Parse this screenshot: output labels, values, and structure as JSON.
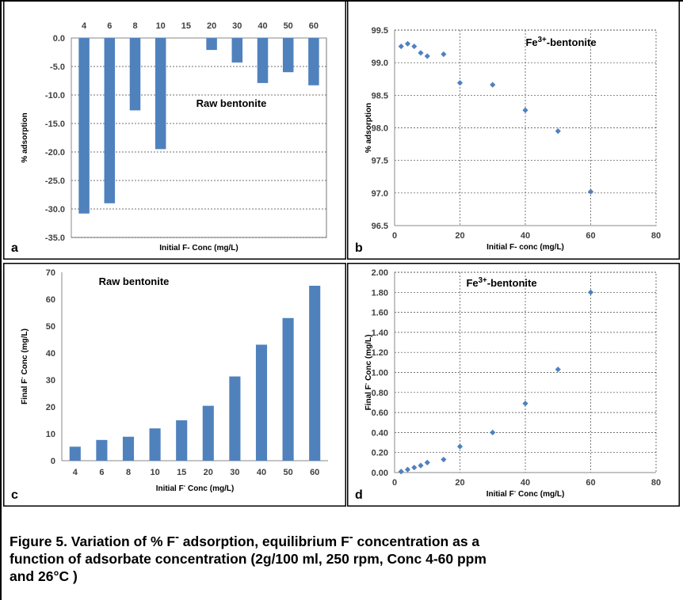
{
  "caption": {
    "line1": "Figure 5. Variation of % F",
    "sup1": "-",
    "line1b": " adsorption, equilibrium F",
    "sup2": "-",
    "line1c": " concentration as a",
    "line2": "function of adsorbate concentration (2g/100 ml, 250 rpm, Conc 4-60 ppm",
    "line3": "and 26°C )"
  },
  "chart_data": [
    {
      "id": "a",
      "panel_letter": "a",
      "type": "bar",
      "annotation": "Raw bentonite",
      "categories": [
        "4",
        "6",
        "8",
        "10",
        "15",
        "20",
        "30",
        "40",
        "50",
        "60"
      ],
      "values": [
        -30.8,
        -29.0,
        -12.7,
        -19.5,
        0.0,
        -2.1,
        -4.3,
        -7.9,
        -6.0,
        -8.3
      ],
      "xlabel": "Initial F- Conc (mg/L)",
      "ylabel": "% adsorption",
      "ylim": [
        -35,
        0
      ],
      "yticks": [
        0,
        -5,
        -10,
        -15,
        -20,
        -25,
        -30,
        -35
      ],
      "ytick_labels": [
        "0.0",
        "-5.0",
        "-10.0",
        "-15.0",
        "-20.0",
        "-25.0",
        "-30.0",
        "-35.0"
      ],
      "category_axis": "top",
      "grid": true,
      "color": "#4f81bd"
    },
    {
      "id": "b",
      "panel_letter": "b",
      "type": "scatter",
      "annotation": "Fe",
      "annotation_sup": "3+",
      "annotation_tail": "-bentonite",
      "x": [
        2,
        4,
        6,
        8,
        10,
        15,
        20,
        30,
        40,
        50,
        60
      ],
      "y": [
        99.25,
        99.29,
        99.25,
        99.15,
        99.1,
        99.13,
        98.69,
        98.66,
        98.27,
        97.95,
        97.02
      ],
      "xlabel": "Initial F- conc (mg/L)",
      "ylabel": "% adsorption",
      "xlim": [
        0,
        80
      ],
      "ylim": [
        96.5,
        99.5
      ],
      "xticks": [
        0,
        20,
        40,
        60,
        80
      ],
      "xtick_labels": [
        "0",
        "20",
        "40",
        "60",
        "80"
      ],
      "yticks": [
        96.5,
        97.0,
        97.5,
        98.0,
        98.5,
        99.0,
        99.5
      ],
      "ytick_labels": [
        "96.5",
        "97.0",
        "97.5",
        "98.0",
        "98.5",
        "99.0",
        "99.5"
      ],
      "grid": true,
      "color": "#4f81bd"
    },
    {
      "id": "c",
      "panel_letter": "c",
      "type": "bar",
      "annotation": "Raw bentonite",
      "categories": [
        "4",
        "6",
        "8",
        "10",
        "15",
        "20",
        "30",
        "40",
        "50",
        "60"
      ],
      "values": [
        5.2,
        7.7,
        8.9,
        12.0,
        15.0,
        20.4,
        31.3,
        43.1,
        53.0,
        65.0
      ],
      "xlabel": "Initial F",
      "xlabel_sup": "-",
      "xlabel_tail": " Conc (mg/L)",
      "ylabel": "Final F",
      "ylabel_sup": "-",
      "ylabel_tail": " Conc (mg/L)",
      "ylim": [
        0,
        70
      ],
      "yticks": [
        0,
        10,
        20,
        30,
        40,
        50,
        60,
        70
      ],
      "ytick_labels": [
        "0",
        "10",
        "20",
        "30",
        "40",
        "50",
        "60",
        "70"
      ],
      "category_axis": "bottom",
      "grid": false,
      "color": "#4f81bd"
    },
    {
      "id": "d",
      "panel_letter": "d",
      "type": "scatter",
      "annotation": "Fe",
      "annotation_sup": "3+",
      "annotation_tail": "-bentonite",
      "x": [
        2,
        4,
        6,
        8,
        10,
        15,
        20,
        30,
        40,
        50,
        60
      ],
      "y": [
        0.01,
        0.03,
        0.05,
        0.07,
        0.1,
        0.13,
        0.26,
        0.4,
        0.69,
        1.03,
        1.8
      ],
      "xlabel": "Initial F",
      "xlabel_sup": "-",
      "xlabel_tail": " Conc (mg/L)",
      "ylabel": "Final F",
      "ylabel_sup": "-",
      "ylabel_tail": " Conc (mg/L)",
      "xlim": [
        0,
        80
      ],
      "ylim": [
        0,
        2.0
      ],
      "xticks": [
        0,
        20,
        40,
        60,
        80
      ],
      "xtick_labels": [
        "0",
        "20",
        "40",
        "60",
        "80"
      ],
      "yticks": [
        0,
        0.2,
        0.4,
        0.6,
        0.8,
        1.0,
        1.2,
        1.4,
        1.6,
        1.8,
        2.0
      ],
      "ytick_labels": [
        "0.00",
        "0.20",
        "0.40",
        "0.60",
        "0.80",
        "1.00",
        "1.20",
        "1.40",
        "1.60",
        "1.80",
        "2.00"
      ],
      "grid": true,
      "color": "#4f81bd"
    }
  ]
}
